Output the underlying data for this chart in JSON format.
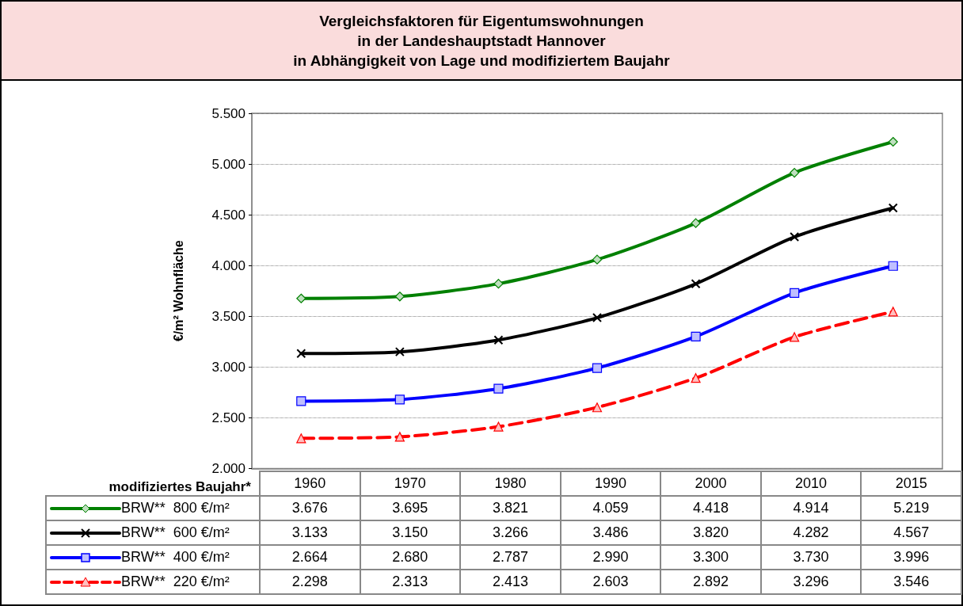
{
  "chart_data": {
    "type": "line",
    "title": "Vergleichsfaktoren für Eigentumswohnungen\nin der Landeshauptstadt Hannover\nin Abhängigkeit von Lage und modifiziertem Baujahr",
    "xlabel": "modifiziertes Baujahr*",
    "ylabel": "€/m² Wohnfläche",
    "categories": [
      "1960",
      "1970",
      "1980",
      "1990",
      "2000",
      "2010",
      "2015"
    ],
    "series": [
      {
        "name": "BRW**  800 €/m²",
        "color": "#008000",
        "marker": "diamond",
        "line_style": "solid",
        "values": [
          3676,
          3695,
          3821,
          4059,
          4418,
          4914,
          5219
        ],
        "value_labels": [
          "3.676",
          "3.695",
          "3.821",
          "4.059",
          "4.418",
          "4.914",
          "5.219"
        ]
      },
      {
        "name": "BRW**  600 €/m²",
        "color": "#000000",
        "marker": "cross",
        "line_style": "solid",
        "values": [
          3133,
          3150,
          3266,
          3486,
          3820,
          4282,
          4567
        ],
        "value_labels": [
          "3.133",
          "3.150",
          "3.266",
          "3.486",
          "3.820",
          "4.282",
          "4.567"
        ]
      },
      {
        "name": "BRW**  400 €/m²",
        "color": "#0000ff",
        "marker": "square",
        "line_style": "solid",
        "values": [
          2664,
          2680,
          2787,
          2990,
          3300,
          3730,
          3996
        ],
        "value_labels": [
          "2.664",
          "2.680",
          "2.787",
          "2.990",
          "3.300",
          "3.730",
          "3.996"
        ]
      },
      {
        "name": "BRW**  220 €/m²",
        "color": "#ff0000",
        "marker": "triangle",
        "line_style": "dashed",
        "values": [
          2298,
          2313,
          2413,
          2603,
          2892,
          3296,
          3546
        ],
        "value_labels": [
          "2.298",
          "2.313",
          "2.413",
          "2.603",
          "2.892",
          "3.296",
          "3.546"
        ]
      }
    ],
    "ylim": [
      2000,
      5500
    ],
    "yticks": [
      {
        "value": 2000,
        "label": "2.000"
      },
      {
        "value": 2500,
        "label": "2.500"
      },
      {
        "value": 3000,
        "label": "3.000"
      },
      {
        "value": 3500,
        "label": "3.500"
      },
      {
        "value": 4000,
        "label": "4.000"
      },
      {
        "value": 4500,
        "label": "4.500"
      },
      {
        "value": 5000,
        "label": "5.000"
      },
      {
        "value": 5500,
        "label": "5.500"
      }
    ],
    "grid": "y",
    "legend": "bottom"
  }
}
